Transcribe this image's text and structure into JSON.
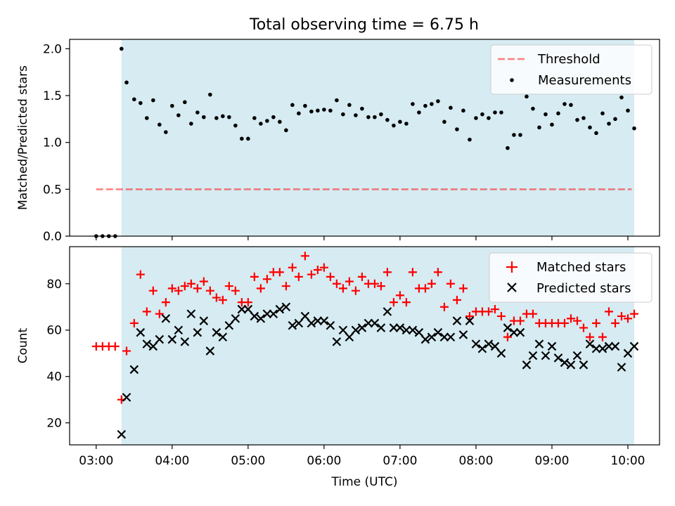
{
  "figure_title": "Total observing time = 6.75 h",
  "chart_data": [
    {
      "type": "scatter",
      "ylabel": "Matched/Predicted stars",
      "xlim": [
        "02:39",
        "10:25"
      ],
      "ylim": [
        0,
        2.1
      ],
      "yticks": [
        "0.0",
        "0.5",
        "1.0",
        "1.5",
        "2.0"
      ],
      "shaded_span": [
        "03:20",
        "10:05"
      ],
      "shade_color": "#add8e6",
      "legend": {
        "placement": "upper right",
        "threshold_label": "Threshold",
        "measurements_label": "Measurements"
      },
      "threshold": {
        "value": 0.5,
        "color": "#ff0000",
        "x": [
          "03:00",
          "10:03"
        ]
      },
      "series": [
        {
          "name": "Measurements",
          "color": "#000000",
          "x": [
            "03:00",
            "03:05",
            "03:10",
            "03:15",
            "03:20",
            "03:24",
            "03:30",
            "03:35",
            "03:40",
            "03:45",
            "03:50",
            "03:55",
            "04:00",
            "04:05",
            "04:10",
            "04:15",
            "04:20",
            "04:25",
            "04:30",
            "04:35",
            "04:40",
            "04:45",
            "04:50",
            "04:55",
            "05:00",
            "05:05",
            "05:10",
            "05:15",
            "05:20",
            "05:25",
            "05:30",
            "05:35",
            "05:40",
            "05:45",
            "05:50",
            "05:55",
            "06:00",
            "06:05",
            "06:10",
            "06:15",
            "06:20",
            "06:25",
            "06:30",
            "06:35",
            "06:40",
            "06:45",
            "06:50",
            "06:55",
            "07:00",
            "07:05",
            "07:10",
            "07:15",
            "07:20",
            "07:25",
            "07:30",
            "07:35",
            "07:40",
            "07:45",
            "07:50",
            "07:55",
            "08:00",
            "08:05",
            "08:10",
            "08:15",
            "08:20",
            "08:25",
            "08:30",
            "08:35",
            "08:40",
            "08:45",
            "08:50",
            "08:55",
            "09:00",
            "09:05",
            "09:10",
            "09:15",
            "09:20",
            "09:25",
            "09:30",
            "09:35",
            "09:40",
            "09:45",
            "09:50",
            "09:55",
            "10:00",
            "10:05"
          ],
          "y": [
            0,
            0,
            0,
            0,
            2.0,
            1.64,
            1.46,
            1.42,
            1.26,
            1.45,
            1.19,
            1.11,
            1.39,
            1.29,
            1.43,
            1.2,
            1.32,
            1.27,
            1.51,
            1.26,
            1.28,
            1.27,
            1.18,
            1.04,
            1.04,
            1.26,
            1.2,
            1.23,
            1.27,
            1.22,
            1.13,
            1.4,
            1.31,
            1.39,
            1.33,
            1.34,
            1.35,
            1.34,
            1.45,
            1.3,
            1.4,
            1.29,
            1.36,
            1.27,
            1.27,
            1.3,
            1.24,
            1.18,
            1.22,
            1.2,
            1.41,
            1.32,
            1.39,
            1.41,
            1.44,
            1.22,
            1.37,
            1.14,
            1.34,
            1.03,
            1.26,
            1.3,
            1.26,
            1.32,
            1.32,
            0.94,
            1.08,
            1.08,
            1.49,
            1.36,
            1.16,
            1.3,
            1.19,
            1.31,
            1.41,
            1.4,
            1.24,
            1.26,
            1.16,
            1.1,
            1.31,
            1.2,
            1.25,
            1.48,
            1.34,
            1.15
          ]
        }
      ]
    },
    {
      "type": "scatter",
      "ylabel": "Count",
      "xlabel": "Time (UTC)",
      "xlim": [
        "02:39",
        "10:25"
      ],
      "ylim": [
        10.5,
        96
      ],
      "yticks": [
        "20",
        "40",
        "60",
        "80"
      ],
      "xticks": [
        "03:00",
        "04:00",
        "05:00",
        "06:00",
        "07:00",
        "08:00",
        "09:00",
        "10:00"
      ],
      "shaded_span": [
        "03:20",
        "10:05"
      ],
      "shade_color": "#add8e6",
      "legend": {
        "placement": "upper right"
      },
      "series": [
        {
          "name": "Matched stars",
          "marker": "+",
          "color": "#ff0000",
          "x": [
            "03:00",
            "03:05",
            "03:10",
            "03:15",
            "03:20",
            "03:24",
            "03:30",
            "03:35",
            "03:40",
            "03:45",
            "03:50",
            "03:55",
            "04:00",
            "04:05",
            "04:10",
            "04:15",
            "04:20",
            "04:25",
            "04:30",
            "04:35",
            "04:40",
            "04:45",
            "04:50",
            "04:55",
            "05:00",
            "05:05",
            "05:10",
            "05:15",
            "05:20",
            "05:25",
            "05:30",
            "05:35",
            "05:40",
            "05:45",
            "05:50",
            "05:55",
            "06:00",
            "06:05",
            "06:10",
            "06:15",
            "06:20",
            "06:25",
            "06:30",
            "06:35",
            "06:40",
            "06:45",
            "06:50",
            "06:55",
            "07:00",
            "07:05",
            "07:10",
            "07:15",
            "07:20",
            "07:25",
            "07:30",
            "07:35",
            "07:40",
            "07:45",
            "07:50",
            "07:55",
            "08:00",
            "08:05",
            "08:10",
            "08:15",
            "08:20",
            "08:25",
            "08:30",
            "08:35",
            "08:40",
            "08:45",
            "08:50",
            "08:55",
            "09:00",
            "09:05",
            "09:10",
            "09:15",
            "09:20",
            "09:25",
            "09:30",
            "09:35",
            "09:40",
            "09:45",
            "09:50",
            "09:55",
            "10:00",
            "10:05"
          ],
          "y": [
            53,
            53,
            53,
            53,
            30,
            51,
            63,
            84,
            68,
            77,
            67,
            72,
            78,
            77,
            79,
            80,
            78,
            81,
            77,
            74,
            73,
            79,
            77,
            72,
            72,
            83,
            78,
            82,
            85,
            85,
            79,
            87,
            83,
            92,
            84,
            86,
            87,
            83,
            80,
            78,
            81,
            77,
            83,
            80,
            80,
            79,
            85,
            72,
            75,
            72,
            85,
            78,
            78,
            80,
            85,
            70,
            80,
            73,
            78,
            66,
            68,
            68,
            68,
            69,
            66,
            57,
            64,
            64,
            67,
            67,
            63,
            63,
            63,
            63,
            63,
            65,
            64,
            61,
            57,
            63,
            57,
            68,
            63,
            66,
            65,
            67
          ]
        },
        {
          "name": "Predicted stars",
          "marker": "x",
          "color": "#000000",
          "x": [
            "03:20",
            "03:24",
            "03:30",
            "03:35",
            "03:40",
            "03:45",
            "03:50",
            "03:55",
            "04:00",
            "04:05",
            "04:10",
            "04:15",
            "04:20",
            "04:25",
            "04:30",
            "04:35",
            "04:40",
            "04:45",
            "04:50",
            "04:55",
            "05:00",
            "05:05",
            "05:10",
            "05:15",
            "05:20",
            "05:25",
            "05:30",
            "05:35",
            "05:40",
            "05:45",
            "05:50",
            "05:55",
            "06:00",
            "06:05",
            "06:10",
            "06:15",
            "06:20",
            "06:25",
            "06:30",
            "06:35",
            "06:40",
            "06:45",
            "06:50",
            "06:55",
            "07:00",
            "07:05",
            "07:10",
            "07:15",
            "07:20",
            "07:25",
            "07:30",
            "07:35",
            "07:40",
            "07:45",
            "07:50",
            "07:55",
            "08:00",
            "08:05",
            "08:10",
            "08:15",
            "08:20",
            "08:25",
            "08:30",
            "08:35",
            "08:40",
            "08:45",
            "08:50",
            "08:55",
            "09:00",
            "09:05",
            "09:10",
            "09:15",
            "09:20",
            "09:25",
            "09:30",
            "09:35",
            "09:40",
            "09:45",
            "09:50",
            "09:55",
            "10:00",
            "10:05"
          ],
          "y": [
            15,
            31,
            43,
            59,
            54,
            53,
            56,
            65,
            56,
            60,
            55,
            67,
            59,
            64,
            51,
            59,
            57,
            62,
            65,
            69,
            69,
            66,
            65,
            67,
            67,
            69,
            70,
            62,
            63,
            66,
            63,
            64,
            64,
            62,
            55,
            60,
            57,
            60,
            61,
            63,
            63,
            61,
            68,
            61,
            61,
            60,
            60,
            59,
            56,
            57,
            59,
            57,
            57,
            64,
            58,
            64,
            54,
            52,
            54,
            53,
            50,
            61,
            59,
            59,
            45,
            49,
            54,
            49,
            53,
            48,
            46,
            45,
            49,
            45,
            54,
            52,
            52,
            53,
            53,
            44,
            50,
            53
          ]
        }
      ]
    }
  ]
}
